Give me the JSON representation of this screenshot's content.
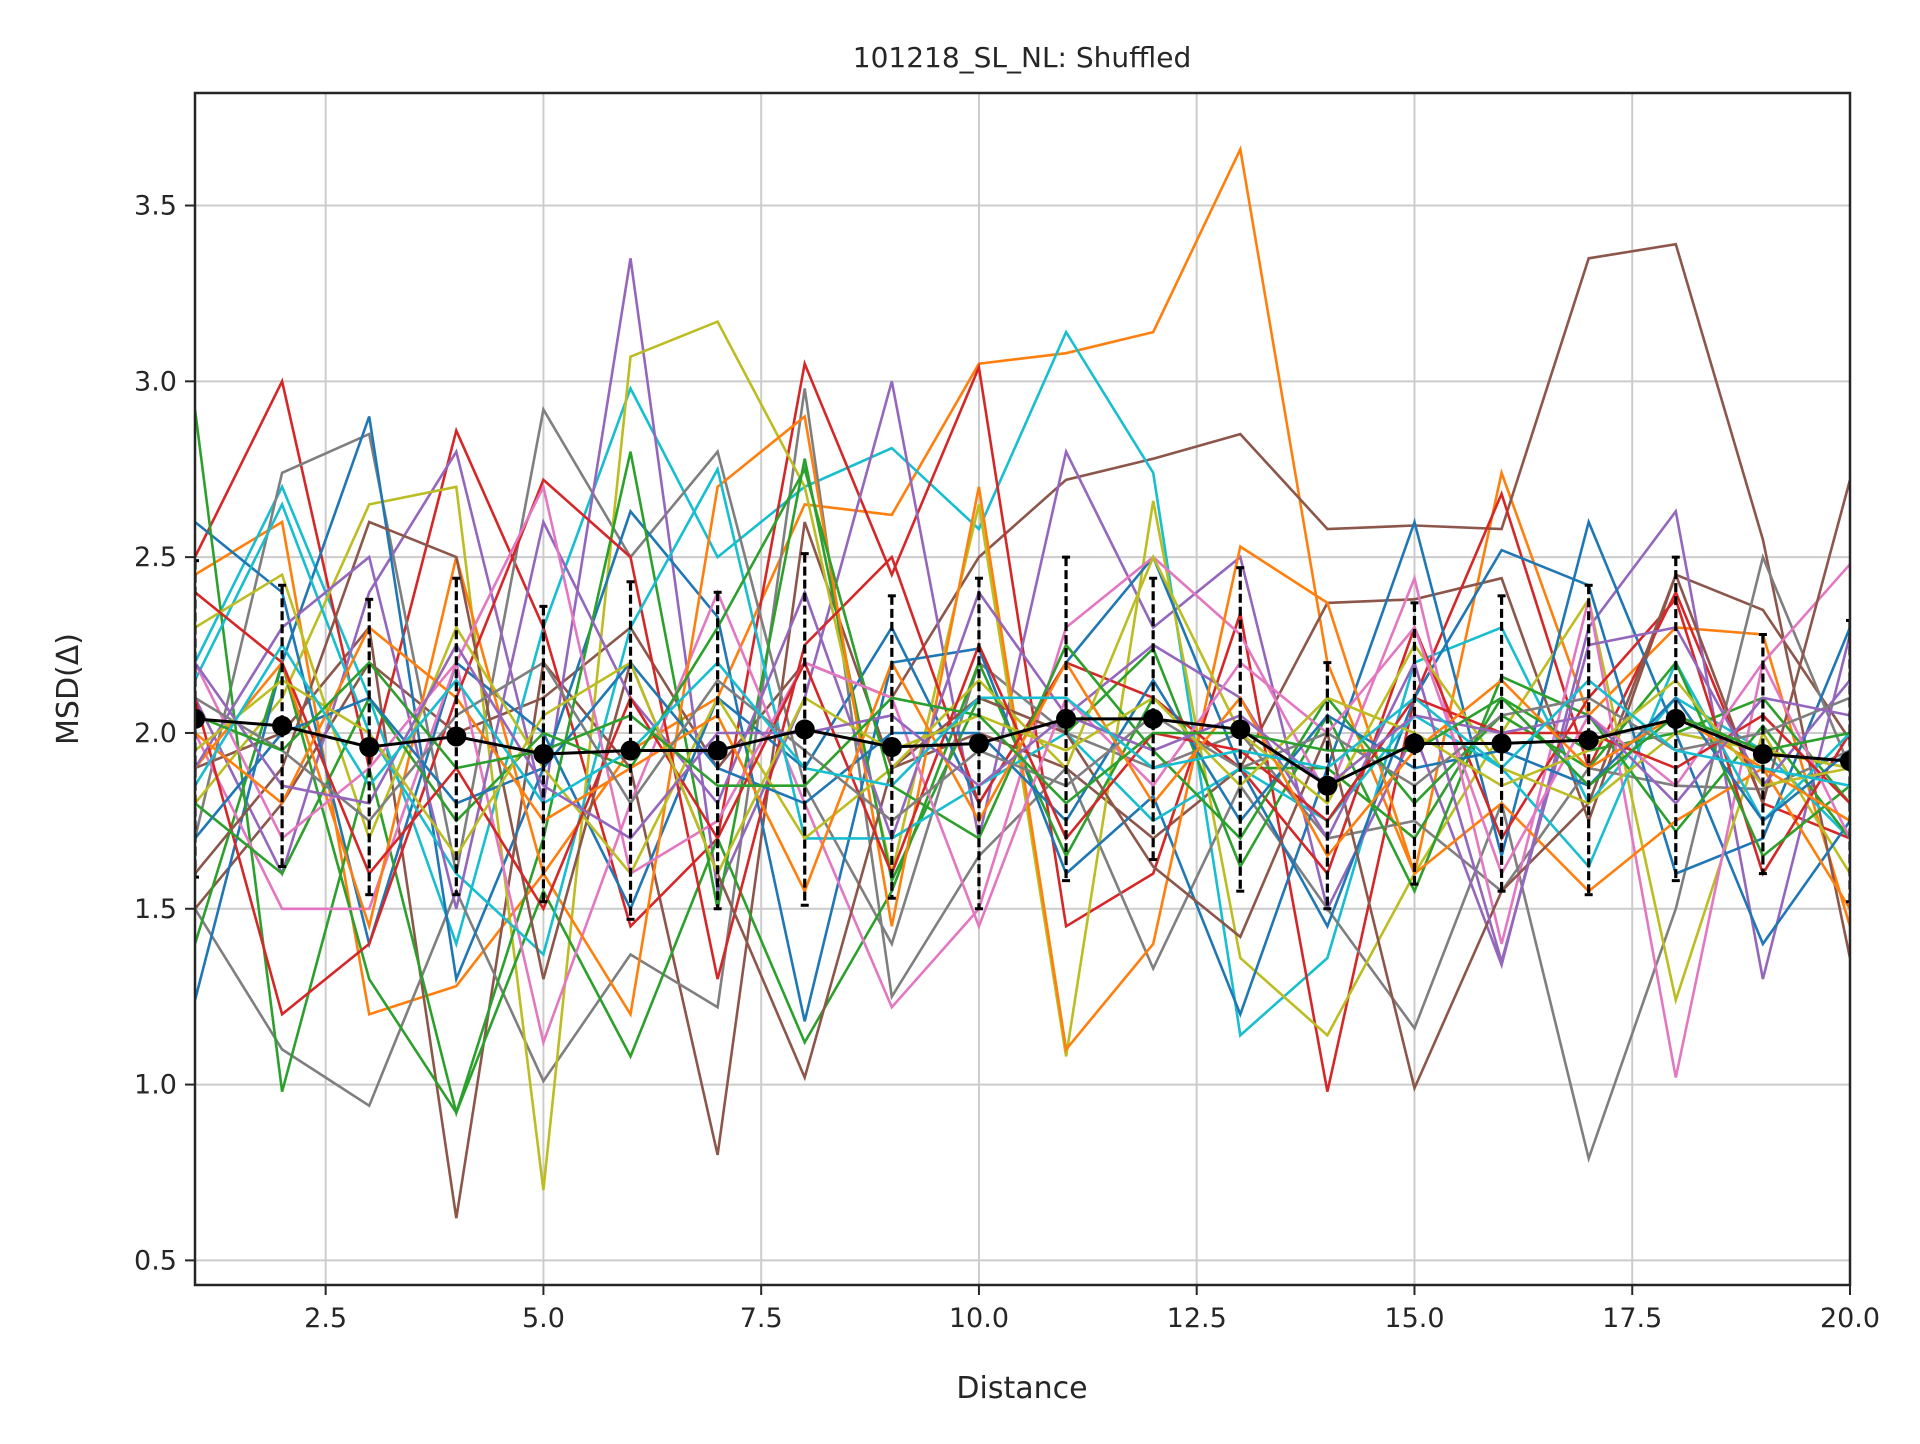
{
  "chart_data": {
    "type": "line",
    "title": "101218_SL_NL: Shuffled",
    "xlabel": "Distance",
    "ylabel": "MSD(Δ)",
    "xlim": [
      1,
      20
    ],
    "ylim": [
      0.43,
      3.82
    ],
    "grid": true,
    "legend": "none",
    "x_ticks": [
      2.5,
      5.0,
      7.5,
      10.0,
      12.5,
      15.0,
      17.5,
      20.0
    ],
    "x_tick_labels": [
      "2.5",
      "5.0",
      "7.5",
      "10.0",
      "12.5",
      "15.0",
      "17.5",
      "20.0"
    ],
    "y_ticks": [
      0.5,
      1.0,
      1.5,
      2.0,
      2.5,
      3.0,
      3.5
    ],
    "y_tick_labels": [
      "0.5",
      "1.0",
      "1.5",
      "2.0",
      "2.5",
      "3.0",
      "3.5"
    ],
    "x": [
      1,
      2,
      3,
      4,
      5,
      6,
      7,
      8,
      9,
      10,
      11,
      12,
      13,
      14,
      15,
      16,
      17,
      18,
      19,
      20
    ],
    "series": [
      {
        "color": "#ff7f0e",
        "values": [
          2.45,
          2.6,
          1.2,
          1.28,
          1.6,
          1.95,
          2.1,
          2.65,
          2.62,
          3.05,
          3.08,
          3.14,
          3.66,
          2.2,
          1.6,
          2.74,
          2.05,
          2.3,
          2.28,
          1.45
        ]
      },
      {
        "color": "#8c564b",
        "values": [
          1.5,
          1.8,
          2.2,
          2.0,
          2.1,
          2.3,
          1.9,
          2.2,
          2.1,
          2.5,
          2.72,
          2.78,
          2.85,
          2.58,
          2.59,
          2.58,
          3.35,
          3.39,
          2.55,
          1.36
        ]
      },
      {
        "color": "#8c564b",
        "values": [
          1.9,
          2.0,
          2.3,
          0.62,
          2.2,
          1.9,
          0.8,
          2.6,
          1.9,
          2.0,
          1.9,
          1.7,
          1.9,
          2.37,
          2.38,
          2.44,
          1.75,
          2.45,
          2.35,
          1.98
        ]
      },
      {
        "color": "#17becf",
        "values": [
          2.2,
          2.7,
          2.1,
          1.4,
          2.3,
          2.98,
          2.5,
          2.7,
          2.81,
          2.58,
          3.14,
          2.74,
          1.14,
          1.36,
          2.2,
          2.3,
          1.8,
          2.1,
          1.95,
          1.7
        ]
      },
      {
        "color": "#d62728",
        "values": [
          2.5,
          3.0,
          1.9,
          2.86,
          2.3,
          1.45,
          1.7,
          3.05,
          2.45,
          3.04,
          1.45,
          1.6,
          2.34,
          0.98,
          2.1,
          2.68,
          1.9,
          2.4,
          1.8,
          1.7
        ]
      },
      {
        "color": "#7f7f7f",
        "values": [
          1.5,
          1.1,
          0.94,
          1.55,
          1.01,
          1.37,
          1.22,
          2.98,
          1.25,
          1.65,
          1.9,
          1.33,
          1.85,
          1.5,
          1.16,
          1.8,
          0.79,
          1.5,
          2.5,
          1.9
        ]
      },
      {
        "color": "#7f7f7f",
        "values": [
          1.7,
          2.74,
          2.85,
          1.6,
          2.92,
          2.5,
          2.8,
          1.85,
          1.4,
          2.2,
          2.0,
          1.9,
          2.0,
          1.7,
          1.75,
          1.55,
          1.9,
          1.85,
          1.84,
          1.95
        ]
      },
      {
        "color": "#9467bd",
        "values": [
          2.1,
          1.6,
          2.4,
          2.8,
          1.8,
          3.35,
          1.55,
          2.1,
          3.0,
          1.7,
          2.8,
          2.3,
          2.5,
          1.5,
          2.0,
          1.34,
          2.3,
          2.63,
          1.3,
          2.28
        ]
      },
      {
        "color": "#bcbd22",
        "values": [
          1.8,
          2.1,
          2.65,
          2.7,
          0.7,
          3.07,
          3.17,
          2.7,
          1.6,
          2.65,
          1.08,
          2.66,
          1.36,
          1.14,
          1.6,
          2.0,
          2.38,
          1.24,
          2.0,
          1.6
        ]
      },
      {
        "color": "#1f77b4",
        "values": [
          1.24,
          2.2,
          2.9,
          1.3,
          1.9,
          2.63,
          2.33,
          1.18,
          2.2,
          2.24,
          1.6,
          1.82,
          1.2,
          1.9,
          2.6,
          1.65,
          2.6,
          2.0,
          1.4,
          1.75
        ]
      },
      {
        "color": "#1f77b4",
        "values": [
          2.6,
          2.4,
          1.4,
          2.2,
          2.0,
          1.5,
          2.1,
          1.9,
          2.3,
          1.8,
          2.2,
          2.5,
          1.9,
          1.45,
          2.1,
          2.52,
          2.42,
          1.6,
          1.7,
          2.3
        ]
      },
      {
        "color": "#2ca02c",
        "values": [
          2.92,
          0.98,
          1.9,
          0.92,
          1.7,
          2.8,
          1.5,
          2.78,
          1.58,
          2.1,
          2.0,
          2.24,
          1.62,
          2.05,
          1.55,
          2.16,
          2.05,
          1.72,
          2.02,
          1.7
        ]
      },
      {
        "color": "#2ca02c",
        "values": [
          1.4,
          2.2,
          1.3,
          0.92,
          1.55,
          1.08,
          1.7,
          1.12,
          1.55,
          2.2,
          1.65,
          2.1,
          1.9,
          1.9,
          1.7,
          2.1,
          1.95,
          2.0,
          2.1,
          1.8
        ]
      },
      {
        "color": "#e377c2",
        "values": [
          2.0,
          1.5,
          1.5,
          2.2,
          1.12,
          1.8,
          2.4,
          1.8,
          1.22,
          1.5,
          2.3,
          2.5,
          2.28,
          1.82,
          2.44,
          1.4,
          2.38,
          1.02,
          2.2,
          2.48
        ]
      },
      {
        "color": "#ff7f0e",
        "values": [
          1.9,
          2.2,
          1.45,
          2.5,
          1.6,
          1.2,
          2.7,
          2.9,
          1.45,
          2.7,
          1.1,
          1.4,
          2.53,
          2.37,
          1.6,
          1.8,
          1.55,
          1.75,
          1.9,
          1.5
        ]
      },
      {
        "color": "#d62728",
        "values": [
          2.1,
          1.2,
          1.4,
          2.1,
          2.72,
          2.5,
          1.3,
          2.25,
          2.5,
          1.8,
          2.2,
          2.1,
          1.9,
          1.6,
          2.3,
          1.7,
          2.1,
          2.38,
          1.6,
          2.0
        ]
      },
      {
        "color": "#17becf",
        "values": [
          2.15,
          2.65,
          2.0,
          1.6,
          1.37,
          2.3,
          2.75,
          1.7,
          1.7,
          1.85,
          2.0,
          1.75,
          1.9,
          1.75,
          2.05,
          1.9,
          1.62,
          2.2,
          1.75,
          2.0
        ]
      },
      {
        "color": "#8c564b",
        "values": [
          1.6,
          1.9,
          2.6,
          2.5,
          1.3,
          2.2,
          1.6,
          1.02,
          1.9,
          2.1,
          2.0,
          1.62,
          1.42,
          2.0,
          0.99,
          1.55,
          1.8,
          2.45,
          1.8,
          2.72
        ]
      },
      {
        "color": "#9467bd",
        "values": [
          1.9,
          2.3,
          2.5,
          1.5,
          2.6,
          2.1,
          1.8,
          2.4,
          1.7,
          2.4,
          2.05,
          2.25,
          2.1,
          1.7,
          2.2,
          1.35,
          2.25,
          2.3,
          1.85,
          2.15
        ]
      },
      {
        "color": "#bcbd22",
        "values": [
          2.3,
          2.45,
          1.7,
          2.3,
          1.9,
          1.6,
          2.1,
          1.7,
          1.9,
          2.15,
          1.9,
          2.5,
          2.0,
          1.8,
          2.25,
          1.9,
          1.8,
          2.0,
          1.95,
          1.9
        ]
      },
      {
        "color": "#2ca02c",
        "values": [
          1.8,
          1.6,
          2.1,
          1.75,
          2.0,
          1.9,
          2.3,
          2.75,
          1.85,
          1.7,
          2.25,
          1.95,
          1.7,
          2.1,
          1.8,
          2.05,
          1.9,
          2.2,
          1.65,
          1.85
        ]
      },
      {
        "color": "#e377c2",
        "values": [
          2.2,
          1.7,
          1.9,
          2.2,
          2.7,
          1.6,
          1.75,
          2.2,
          2.1,
          1.45,
          2.1,
          1.85,
          2.2,
          2.0,
          2.3,
          1.6,
          2.05,
          1.85,
          2.2,
          1.7
        ]
      },
      {
        "color": "#1f77b4",
        "values": [
          1.7,
          2.0,
          2.1,
          1.8,
          1.9,
          2.2,
          1.9,
          1.8,
          2.0,
          2.0,
          1.75,
          2.15,
          1.75,
          2.05,
          1.9,
          1.95,
          1.85,
          2.1,
          1.75,
          1.95
        ]
      },
      {
        "color": "#d62728",
        "values": [
          2.4,
          2.2,
          1.6,
          1.9,
          1.5,
          2.1,
          1.7,
          2.2,
          1.6,
          2.25,
          1.7,
          2.0,
          1.95,
          1.75,
          2.1,
          2.0,
          2.0,
          1.9,
          2.05,
          1.8
        ]
      },
      {
        "color": "#ff7f0e",
        "values": [
          2.0,
          1.8,
          2.3,
          2.1,
          1.75,
          1.9,
          2.05,
          1.55,
          2.2,
          1.75,
          2.2,
          1.8,
          2.1,
          1.65,
          1.95,
          2.15,
          1.9,
          2.05,
          1.9,
          1.75
        ]
      },
      {
        "color": "#7f7f7f",
        "values": [
          2.1,
          1.95,
          1.75,
          2.05,
          2.2,
          1.8,
          2.15,
          1.95,
          1.75,
          1.95,
          1.85,
          2.05,
          1.9,
          2.0,
          1.85,
          2.05,
          2.1,
          1.95,
          2.0,
          2.1
        ]
      },
      {
        "color": "#bcbd22",
        "values": [
          1.95,
          2.15,
          2.0,
          1.65,
          2.05,
          2.2,
          1.6,
          2.1,
          1.95,
          2.05,
          1.95,
          2.1,
          1.85,
          2.1,
          2.0,
          1.85,
          1.95,
          2.15,
          1.85,
          1.9
        ]
      },
      {
        "color": "#9467bd",
        "values": [
          2.2,
          1.85,
          1.8,
          2.25,
          1.85,
          1.7,
          2.0,
          2.0,
          2.05,
          1.85,
          2.05,
          1.95,
          2.05,
          1.85,
          2.05,
          2.0,
          2.05,
          1.8,
          2.1,
          2.05
        ]
      },
      {
        "color": "#2ca02c",
        "values": [
          2.05,
          1.95,
          2.2,
          1.9,
          1.95,
          2.05,
          1.85,
          1.85,
          2.1,
          2.05,
          1.8,
          2.0,
          2.0,
          1.95,
          1.95,
          2.1,
          1.85,
          2.05,
          1.95,
          2.0
        ]
      },
      {
        "color": "#17becf",
        "values": [
          1.85,
          2.25,
          1.85,
          2.15,
          1.8,
          1.95,
          2.2,
          1.9,
          1.85,
          2.1,
          2.1,
          1.9,
          1.95,
          1.9,
          2.1,
          1.9,
          2.15,
          1.95,
          1.9,
          1.85
        ]
      }
    ],
    "mean_series": {
      "color": "#000000",
      "values": [
        2.04,
        2.02,
        1.96,
        1.99,
        1.94,
        1.95,
        1.95,
        2.01,
        1.96,
        1.97,
        2.04,
        2.04,
        2.01,
        1.85,
        1.97,
        1.97,
        1.98,
        2.04,
        1.94,
        1.92
      ],
      "error": [
        0.45,
        0.4,
        0.42,
        0.45,
        0.42,
        0.48,
        0.45,
        0.5,
        0.43,
        0.47,
        0.46,
        0.4,
        0.46,
        0.35,
        0.4,
        0.42,
        0.44,
        0.46,
        0.34,
        0.4
      ]
    }
  }
}
